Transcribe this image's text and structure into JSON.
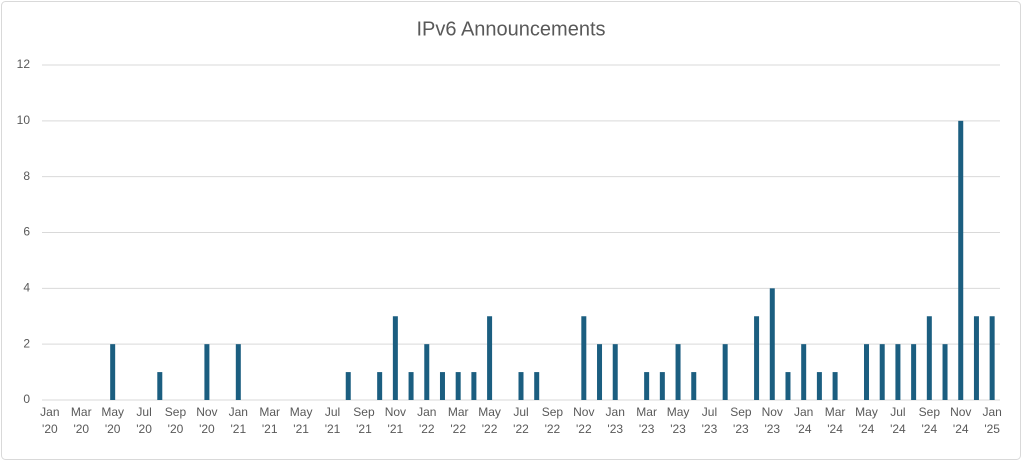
{
  "chart_data": {
    "type": "bar",
    "title": "IPv6 Announcements",
    "categories": [
      "Jan '20",
      null,
      "Mar '20",
      null,
      "May '20",
      null,
      "Jul '20",
      null,
      "Sep '20",
      null,
      "Nov '20",
      null,
      "Jan '21",
      null,
      "Mar '21",
      null,
      "May '21",
      null,
      "Jul '21",
      null,
      "Sep '21",
      null,
      "Nov '21",
      null,
      "Jan '22",
      null,
      "Mar '22",
      null,
      "May '22",
      null,
      "Jul '22",
      null,
      "Sep '22",
      null,
      "Nov '22",
      null,
      "Jan '23",
      null,
      "Mar '23",
      null,
      "May '23",
      null,
      "Jul '23",
      null,
      "Sep '23",
      null,
      "Nov '23",
      null,
      "Jan '24",
      null,
      "Mar '24",
      null,
      "May '24",
      null,
      "Jul '24",
      null,
      "Sep '24",
      null,
      "Nov '24",
      null,
      "Jan '25"
    ],
    "values": [
      0,
      0,
      0,
      0,
      2,
      0,
      0,
      1,
      0,
      0,
      2,
      0,
      2,
      0,
      0,
      0,
      0,
      0,
      0,
      1,
      0,
      1,
      3,
      1,
      2,
      1,
      1,
      1,
      3,
      0,
      1,
      1,
      0,
      0,
      3,
      2,
      2,
      0,
      1,
      1,
      2,
      1,
      0,
      2,
      0,
      3,
      4,
      1,
      2,
      1,
      1,
      0,
      2,
      2,
      2,
      2,
      3,
      2,
      10,
      3,
      3
    ],
    "color": "#1b5e80",
    "ylim": [
      0,
      12
    ],
    "yticks": [
      0,
      2,
      4,
      6,
      8,
      10,
      12
    ],
    "grid": true
  }
}
